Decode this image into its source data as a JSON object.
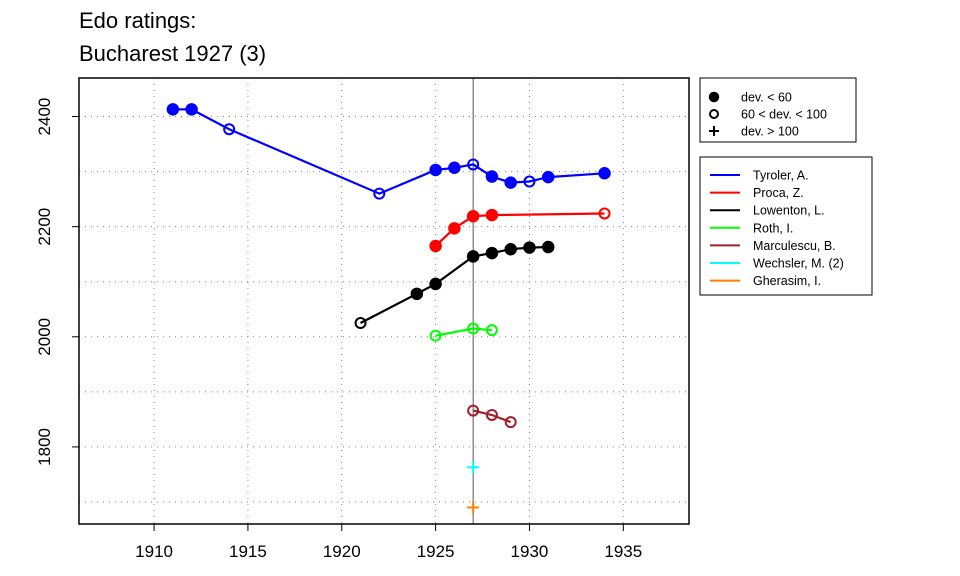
{
  "chart_data": {
    "type": "line",
    "title": [
      "Edo ratings:",
      "Bucharest 1927 (3)"
    ],
    "xlabel": "",
    "ylabel": "",
    "xlim": [
      1906,
      1938.5
    ],
    "ylim": [
      1660,
      2470
    ],
    "x_ticks": [
      1910,
      1915,
      1920,
      1925,
      1930,
      1935
    ],
    "y_ticks": [
      1800,
      2000,
      2200,
      2400
    ],
    "x_grid": [
      1910,
      1915,
      1920,
      1925,
      1930,
      1935
    ],
    "y_grid": [
      1700,
      1800,
      1900,
      2000,
      2100,
      2200,
      2300,
      2400
    ],
    "grid": "dotted",
    "vline_x": 1927,
    "marker_legend": {
      "position": "top-right",
      "entries": [
        {
          "symbol": "filled-circle",
          "label": "dev. < 60"
        },
        {
          "symbol": "open-circle",
          "label": "60 < dev. < 100"
        },
        {
          "symbol": "plus",
          "label": "dev. > 100"
        }
      ]
    },
    "series": [
      {
        "name": "Tyroler, A.",
        "color": "#0000ff",
        "points": [
          {
            "x": 1911,
            "y": 2413,
            "m": "filled"
          },
          {
            "x": 1912,
            "y": 2413,
            "m": "filled"
          },
          {
            "x": 1914,
            "y": 2377,
            "m": "open"
          },
          {
            "x": 1922,
            "y": 2260,
            "m": "open"
          },
          {
            "x": 1925,
            "y": 2303,
            "m": "filled"
          },
          {
            "x": 1926,
            "y": 2307,
            "m": "filled"
          },
          {
            "x": 1927,
            "y": 2313,
            "m": "open"
          },
          {
            "x": 1928,
            "y": 2291,
            "m": "filled"
          },
          {
            "x": 1929,
            "y": 2280,
            "m": "filled"
          },
          {
            "x": 1930,
            "y": 2282,
            "m": "open"
          },
          {
            "x": 1931,
            "y": 2290,
            "m": "filled"
          },
          {
            "x": 1934,
            "y": 2297,
            "m": "filled"
          }
        ]
      },
      {
        "name": "Proca, Z.",
        "color": "#ff0000",
        "points": [
          {
            "x": 1925,
            "y": 2165,
            "m": "filled"
          },
          {
            "x": 1926,
            "y": 2197,
            "m": "filled"
          },
          {
            "x": 1927,
            "y": 2219,
            "m": "filled"
          },
          {
            "x": 1928,
            "y": 2221,
            "m": "filled"
          },
          {
            "x": 1934,
            "y": 2224,
            "m": "open"
          }
        ]
      },
      {
        "name": "Lowenton, L.",
        "color": "#000000",
        "points": [
          {
            "x": 1921,
            "y": 2025,
            "m": "open"
          },
          {
            "x": 1924,
            "y": 2078,
            "m": "filled"
          },
          {
            "x": 1925,
            "y": 2096,
            "m": "filled"
          },
          {
            "x": 1927,
            "y": 2146,
            "m": "filled"
          },
          {
            "x": 1928,
            "y": 2152,
            "m": "filled"
          },
          {
            "x": 1929,
            "y": 2159,
            "m": "filled"
          },
          {
            "x": 1930,
            "y": 2162,
            "m": "filled"
          },
          {
            "x": 1931,
            "y": 2163,
            "m": "filled"
          }
        ]
      },
      {
        "name": "Roth, I.",
        "color": "#00ff00",
        "points": [
          {
            "x": 1925,
            "y": 2002,
            "m": "open"
          },
          {
            "x": 1927,
            "y": 2015,
            "m": "open"
          },
          {
            "x": 1928,
            "y": 2012,
            "m": "open"
          }
        ]
      },
      {
        "name": "Marculescu, B.",
        "color": "#a0202a",
        "points": [
          {
            "x": 1927,
            "y": 1866,
            "m": "open"
          },
          {
            "x": 1928,
            "y": 1858,
            "m": "open"
          },
          {
            "x": 1929,
            "y": 1845,
            "m": "open"
          }
        ]
      },
      {
        "name": "Wechsler, M. (2)",
        "color": "#00ffff",
        "points": [
          {
            "x": 1927,
            "y": 1763,
            "m": "plus"
          }
        ]
      },
      {
        "name": "Gherasim, I.",
        "color": "#ff7f00",
        "points": [
          {
            "x": 1927,
            "y": 1690,
            "m": "plus"
          }
        ]
      }
    ],
    "series_legend_position": "right"
  }
}
